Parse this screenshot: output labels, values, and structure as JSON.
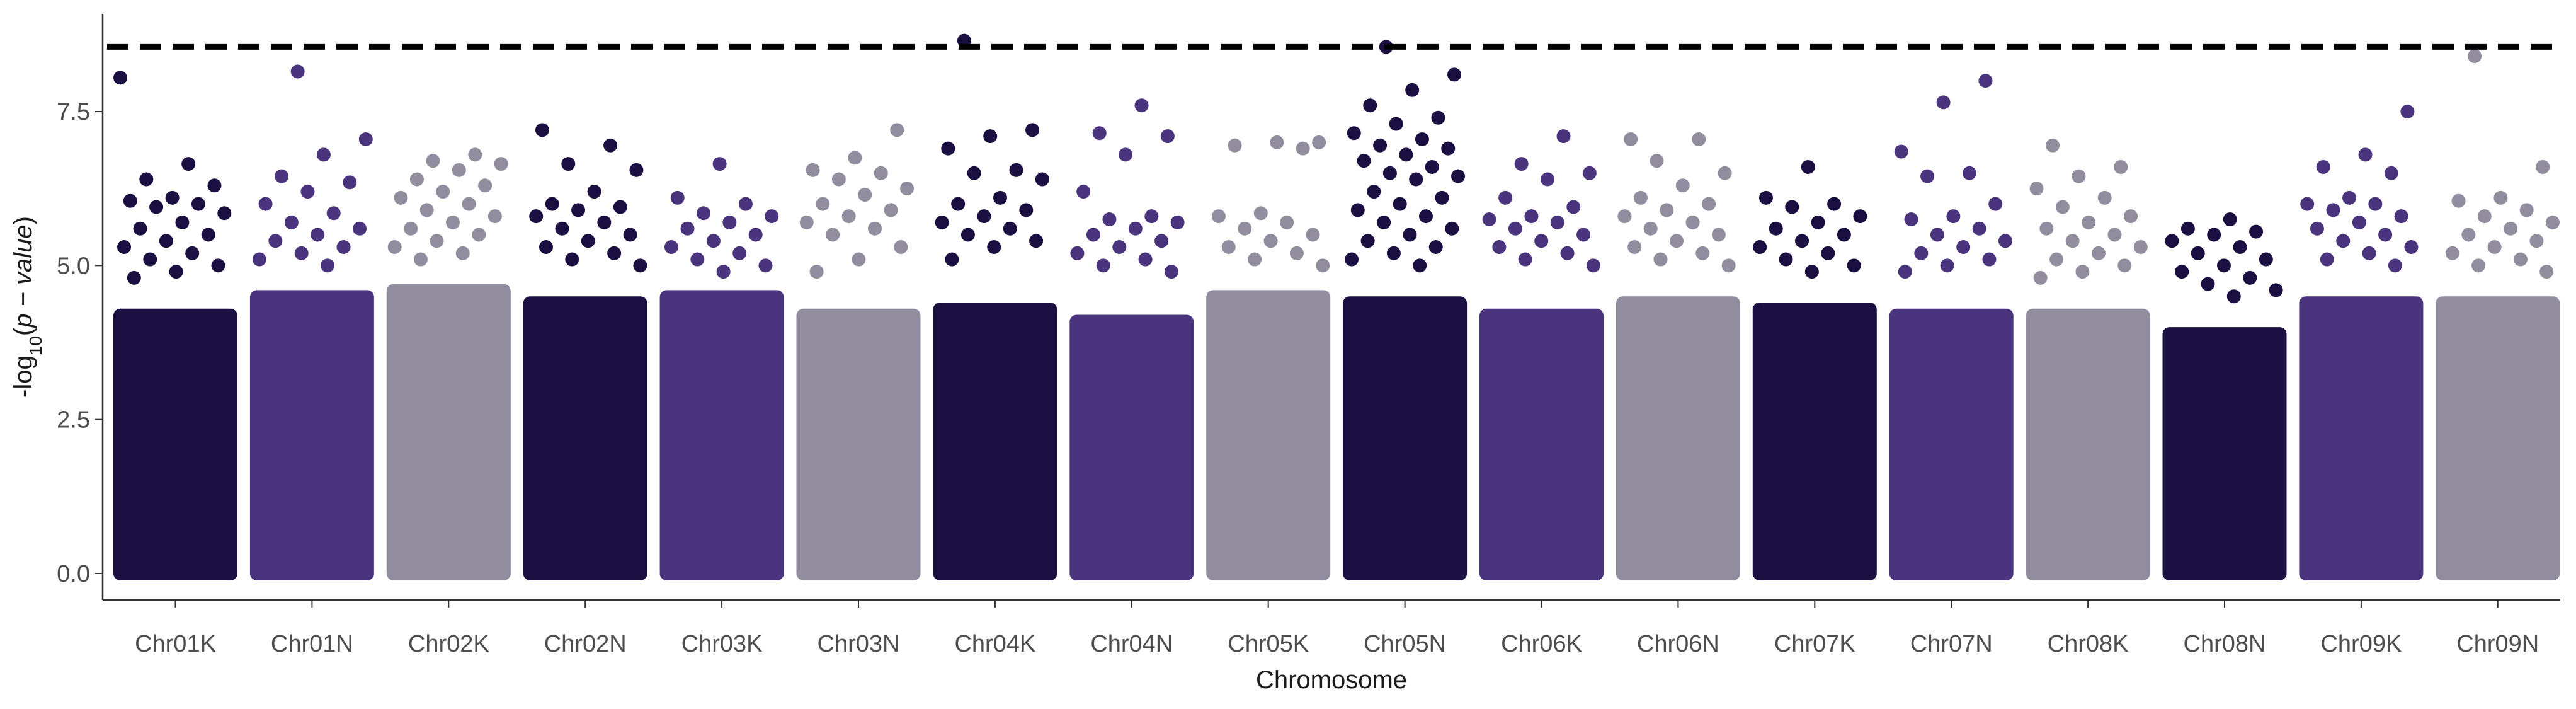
{
  "chart_data": {
    "type": "scatter",
    "subtype": "manhattan",
    "title": "",
    "xlabel": "Chromosome",
    "ylabel_parts": {
      "prefix": "-log",
      "sub": "10",
      "paren_open": "(",
      "italic": "p − value",
      "paren_close": ")"
    },
    "ylim": [
      0,
      8.7
    ],
    "yticks": [
      0.0,
      2.5,
      5.0,
      7.5
    ],
    "ytick_labels": [
      "0.0",
      "2.5",
      "5.0",
      "7.5"
    ],
    "threshold": 8.55,
    "grid": false,
    "legend": "none",
    "colors": [
      "#1a0f40",
      "#4a347e",
      "#918c9e"
    ],
    "threshold_color": "#000000",
    "categories": [
      "Chr01K",
      "Chr01N",
      "Chr02K",
      "Chr02N",
      "Chr03K",
      "Chr03N",
      "Chr04K",
      "Chr04N",
      "Chr05K",
      "Chr05N",
      "Chr06K",
      "Chr06N",
      "Chr07K",
      "Chr07N",
      "Chr08K",
      "Chr08N",
      "Chr09K",
      "Chr09N"
    ],
    "series": [
      {
        "chromosome": "Chr01K",
        "color_index": 0,
        "dense_top": 4.3,
        "points": [
          8.05,
          6.65,
          6.4,
          6.3,
          6.1,
          6.05,
          6.0,
          5.95,
          5.85,
          5.7,
          5.6,
          5.5,
          5.4,
          5.3,
          5.2,
          5.1,
          5.0,
          4.9,
          4.8
        ]
      },
      {
        "chromosome": "Chr01N",
        "color_index": 1,
        "dense_top": 4.6,
        "points": [
          8.15,
          7.05,
          6.8,
          6.45,
          6.35,
          6.2,
          6.0,
          5.85,
          5.7,
          5.6,
          5.5,
          5.4,
          5.3,
          5.2,
          5.1,
          5.0
        ]
      },
      {
        "chromosome": "Chr02K",
        "color_index": 2,
        "dense_top": 4.7,
        "points": [
          6.8,
          6.7,
          6.65,
          6.55,
          6.4,
          6.3,
          6.2,
          6.1,
          6.0,
          5.9,
          5.8,
          5.7,
          5.6,
          5.5,
          5.4,
          5.3,
          5.2,
          5.1
        ]
      },
      {
        "chromosome": "Chr02N",
        "color_index": 0,
        "dense_top": 4.5,
        "points": [
          7.2,
          6.95,
          6.65,
          6.55,
          6.2,
          6.0,
          5.95,
          5.9,
          5.8,
          5.7,
          5.6,
          5.5,
          5.4,
          5.3,
          5.2,
          5.1,
          5.0
        ]
      },
      {
        "chromosome": "Chr03K",
        "color_index": 1,
        "dense_top": 4.6,
        "points": [
          6.65,
          6.1,
          6.0,
          5.85,
          5.8,
          5.7,
          5.6,
          5.5,
          5.4,
          5.3,
          5.2,
          5.1,
          5.0,
          4.9
        ]
      },
      {
        "chromosome": "Chr03N",
        "color_index": 2,
        "dense_top": 4.3,
        "points": [
          7.2,
          6.75,
          6.55,
          6.5,
          6.4,
          6.25,
          6.15,
          6.0,
          5.9,
          5.8,
          5.7,
          5.6,
          5.5,
          5.3,
          5.1,
          4.9
        ]
      },
      {
        "chromosome": "Chr04K",
        "color_index": 0,
        "dense_top": 4.4,
        "points": [
          8.65,
          7.2,
          7.1,
          6.9,
          6.55,
          6.5,
          6.4,
          6.1,
          6.0,
          5.9,
          5.8,
          5.7,
          5.6,
          5.5,
          5.4,
          5.3,
          5.1
        ]
      },
      {
        "chromosome": "Chr04N",
        "color_index": 1,
        "dense_top": 4.2,
        "points": [
          7.6,
          7.15,
          7.1,
          6.8,
          6.2,
          5.8,
          5.75,
          5.7,
          5.6,
          5.5,
          5.4,
          5.3,
          5.2,
          5.1,
          5.0,
          4.9
        ]
      },
      {
        "chromosome": "Chr05K",
        "color_index": 2,
        "dense_top": 4.6,
        "points": [
          7.0,
          7.0,
          6.95,
          6.9,
          5.85,
          5.8,
          5.7,
          5.6,
          5.5,
          5.4,
          5.3,
          5.2,
          5.1,
          5.0
        ]
      },
      {
        "chromosome": "Chr05N",
        "color_index": 0,
        "dense_top": 4.5,
        "points": [
          8.55,
          8.1,
          7.85,
          7.6,
          7.4,
          7.3,
          7.15,
          7.05,
          6.95,
          6.9,
          6.8,
          6.7,
          6.6,
          6.5,
          6.45,
          6.4,
          6.2,
          6.1,
          6.0,
          5.9,
          5.8,
          5.7,
          5.6,
          5.5,
          5.4,
          5.3,
          5.2,
          5.1,
          5.0
        ]
      },
      {
        "chromosome": "Chr06K",
        "color_index": 1,
        "dense_top": 4.3,
        "points": [
          7.1,
          6.65,
          6.5,
          6.4,
          6.1,
          5.95,
          5.8,
          5.75,
          5.7,
          5.6,
          5.5,
          5.4,
          5.3,
          5.2,
          5.1,
          5.0
        ]
      },
      {
        "chromosome": "Chr06N",
        "color_index": 2,
        "dense_top": 4.5,
        "points": [
          7.05,
          7.05,
          6.7,
          6.5,
          6.3,
          6.1,
          6.0,
          5.9,
          5.8,
          5.7,
          5.6,
          5.5,
          5.4,
          5.3,
          5.2,
          5.1,
          5.0
        ]
      },
      {
        "chromosome": "Chr07K",
        "color_index": 0,
        "dense_top": 4.4,
        "points": [
          6.6,
          6.1,
          6.0,
          5.95,
          5.8,
          5.7,
          5.6,
          5.5,
          5.4,
          5.3,
          5.2,
          5.1,
          5.0,
          4.9
        ]
      },
      {
        "chromosome": "Chr07N",
        "color_index": 1,
        "dense_top": 4.3,
        "points": [
          8.0,
          7.65,
          6.85,
          6.5,
          6.45,
          6.0,
          5.8,
          5.75,
          5.6,
          5.5,
          5.4,
          5.3,
          5.2,
          5.1,
          5.0,
          4.9
        ]
      },
      {
        "chromosome": "Chr08K",
        "color_index": 2,
        "dense_top": 4.3,
        "points": [
          6.95,
          6.6,
          6.45,
          6.25,
          6.1,
          5.95,
          5.8,
          5.7,
          5.6,
          5.5,
          5.4,
          5.3,
          5.2,
          5.1,
          5.0,
          4.9,
          4.8
        ]
      },
      {
        "chromosome": "Chr08N",
        "color_index": 0,
        "dense_top": 4.0,
        "points": [
          5.75,
          5.6,
          5.55,
          5.5,
          5.4,
          5.3,
          5.2,
          5.1,
          5.0,
          4.9,
          4.8,
          4.7,
          4.6,
          4.5
        ]
      },
      {
        "chromosome": "Chr09K",
        "color_index": 1,
        "dense_top": 4.5,
        "points": [
          7.5,
          6.8,
          6.6,
          6.5,
          6.1,
          6.0,
          6.0,
          5.9,
          5.8,
          5.7,
          5.6,
          5.5,
          5.4,
          5.3,
          5.2,
          5.1,
          5.0
        ]
      },
      {
        "chromosome": "Chr09N",
        "color_index": 2,
        "dense_top": 4.5,
        "points": [
          8.4,
          6.6,
          6.1,
          6.05,
          5.9,
          5.8,
          5.7,
          5.6,
          5.5,
          5.4,
          5.3,
          5.2,
          5.1,
          5.0,
          4.9
        ]
      }
    ]
  }
}
